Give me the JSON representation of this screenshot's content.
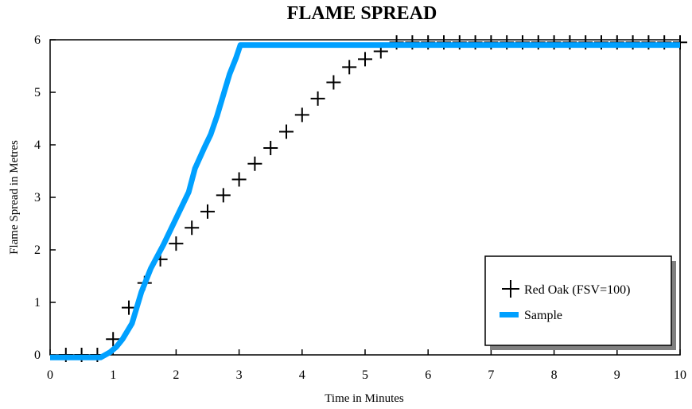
{
  "chart_data": {
    "type": "line",
    "title": "FLAME SPREAD",
    "xlabel": "Time in Minutes",
    "ylabel": "Flame Spread in Metres",
    "xlim": [
      0,
      10
    ],
    "ylim": [
      0,
      6
    ],
    "xticks": [
      0,
      1,
      2,
      3,
      4,
      5,
      6,
      7,
      8,
      9,
      10
    ],
    "yticks": [
      0,
      1,
      2,
      3,
      4,
      5,
      6
    ],
    "grid": false,
    "legend_position": "bottom-right",
    "series": [
      {
        "name": "Red Oak (FSV=100)",
        "style": "markers",
        "marker": "plus",
        "color": "#000000",
        "x": [
          0.25,
          0.5,
          0.75,
          1.0,
          1.25,
          1.5,
          1.75,
          2.0,
          2.25,
          2.5,
          2.75,
          3.0,
          3.25,
          3.5,
          3.75,
          4.0,
          4.25,
          4.5,
          4.75,
          5.0,
          5.25,
          5.5,
          5.75,
          6.0,
          6.25,
          6.5,
          6.75,
          7.0,
          7.25,
          7.5,
          7.75,
          8.0,
          8.25,
          8.5,
          8.75,
          9.0,
          9.25,
          9.5,
          9.75,
          10.0
        ],
        "values": [
          0.0,
          0.0,
          0.0,
          0.3,
          0.9,
          1.37,
          1.82,
          2.12,
          2.42,
          2.73,
          3.04,
          3.34,
          3.64,
          3.94,
          4.25,
          4.57,
          4.88,
          5.19,
          5.48,
          5.63,
          5.78,
          5.95,
          5.95,
          5.95,
          5.95,
          5.95,
          5.95,
          5.95,
          5.95,
          5.95,
          5.95,
          5.95,
          5.95,
          5.95,
          5.95,
          5.95,
          5.95,
          5.95,
          5.95,
          5.95
        ]
      },
      {
        "name": "Sample",
        "style": "line",
        "color": "#00a0ff",
        "x": [
          0.0,
          0.8,
          0.95,
          1.05,
          1.15,
          1.3,
          1.45,
          1.6,
          1.8,
          2.0,
          2.2,
          2.3,
          2.45,
          2.55,
          2.65,
          2.75,
          2.85,
          2.95,
          3.02,
          3.1,
          4.0,
          5.0,
          6.0,
          7.0,
          8.0,
          9.0,
          10.0
        ],
        "values": [
          -0.05,
          -0.05,
          0.05,
          0.15,
          0.3,
          0.6,
          1.2,
          1.65,
          2.1,
          2.6,
          3.1,
          3.55,
          3.95,
          4.2,
          4.55,
          4.95,
          5.35,
          5.65,
          5.9,
          5.9,
          5.9,
          5.9,
          5.9,
          5.9,
          5.9,
          5.9,
          5.9
        ]
      }
    ]
  },
  "legend": {
    "items": [
      {
        "label": "Red Oak (FSV=100)",
        "symbol": "plus-icon"
      },
      {
        "label": "Sample",
        "symbol": "line-swatch"
      }
    ]
  }
}
